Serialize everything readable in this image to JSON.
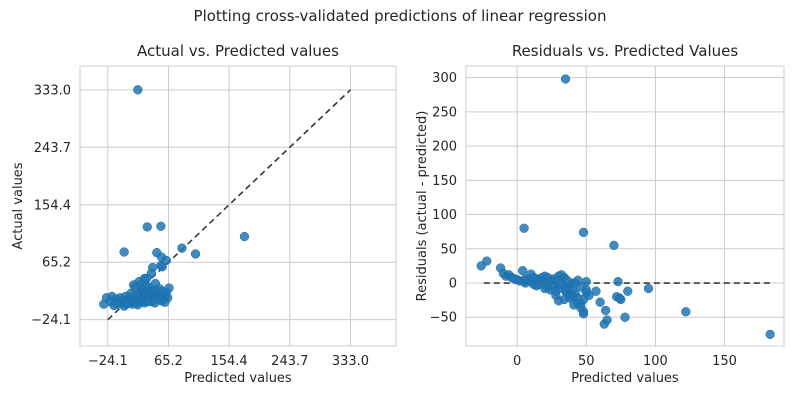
{
  "suptitle": "Plotting cross-validated predictions of linear regression",
  "chart_data": [
    {
      "type": "scatter",
      "title": "Actual vs. Predicted values",
      "xlabel": "Predicted values",
      "ylabel": "Actual values",
      "xlim": [
        -65,
        400
      ],
      "ylim": [
        -65,
        370
      ],
      "xticks": [
        -24.1,
        65.2,
        154.4,
        243.7,
        333.0
      ],
      "yticks": [
        -24.1,
        65.2,
        154.4,
        243.7,
        333.0
      ],
      "xtick_labels": [
        "−24.1",
        "65.2",
        "154.4",
        "243.7",
        "333.0"
      ],
      "ytick_labels": [
        "−24.1",
        "65.2",
        "154.4",
        "243.7",
        "333.0"
      ],
      "grid": true,
      "reference_line": {
        "x": [
          -24.1,
          333.0
        ],
        "y": [
          -24.1,
          333.0
        ],
        "style": "dashed"
      },
      "point_color": "#1f77b4",
      "points": [
        [
          20,
          333
        ],
        [
          177,
          105
        ],
        [
          34,
          120
        ],
        [
          54,
          121
        ],
        [
          48,
          80
        ],
        [
          85,
          87
        ],
        [
          105,
          78
        ],
        [
          0,
          81
        ],
        [
          55,
          73
        ],
        [
          62,
          68
        ],
        [
          54,
          60
        ],
        [
          56,
          58
        ],
        [
          42,
          57
        ],
        [
          30,
          40
        ],
        [
          22,
          35
        ],
        [
          40,
          48
        ],
        [
          33,
          40
        ],
        [
          46,
          32
        ],
        [
          14,
          30
        ],
        [
          25,
          24
        ],
        [
          38,
          21
        ],
        [
          50,
          18
        ],
        [
          58,
          16
        ],
        [
          -30,
          0
        ],
        [
          -26,
          10
        ],
        [
          -18,
          12
        ],
        [
          -12,
          8
        ],
        [
          -8,
          4
        ],
        [
          -4,
          2
        ],
        [
          0,
          1
        ],
        [
          3,
          0
        ],
        [
          6,
          4
        ],
        [
          8,
          7
        ],
        [
          10,
          3
        ],
        [
          12,
          6
        ],
        [
          14,
          10
        ],
        [
          16,
          12
        ],
        [
          18,
          2
        ],
        [
          20,
          5
        ],
        [
          22,
          9
        ],
        [
          24,
          14
        ],
        [
          26,
          18
        ],
        [
          28,
          11
        ],
        [
          30,
          6
        ],
        [
          32,
          15
        ],
        [
          34,
          20
        ],
        [
          36,
          8
        ],
        [
          38,
          12
        ],
        [
          40,
          4
        ],
        [
          42,
          14
        ],
        [
          44,
          17
        ],
        [
          46,
          22
        ],
        [
          48,
          10
        ],
        [
          50,
          8
        ],
        [
          52,
          13
        ],
        [
          54,
          16
        ],
        [
          56,
          20
        ],
        [
          58,
          7
        ],
        [
          60,
          12
        ],
        [
          62,
          18
        ],
        [
          64,
          10
        ],
        [
          66,
          25
        ],
        [
          -6,
          10
        ],
        [
          2,
          12
        ],
        [
          10,
          17
        ],
        [
          28,
          24
        ],
        [
          36,
          27
        ],
        [
          44,
          6
        ],
        [
          -2,
          6
        ],
        [
          4,
          2
        ],
        [
          8,
          10
        ],
        [
          12,
          0
        ],
        [
          18,
          14
        ],
        [
          26,
          4
        ],
        [
          -20,
          4
        ],
        [
          -15,
          -2
        ],
        [
          -10,
          0
        ],
        [
          0,
          -3
        ],
        [
          5,
          1
        ],
        [
          15,
          3
        ],
        [
          20,
          -1
        ],
        [
          30,
          2
        ],
        [
          35,
          4
        ],
        [
          45,
          2
        ],
        [
          55,
          5
        ],
        [
          60,
          3
        ],
        [
          16,
          26
        ],
        [
          24,
          30
        ],
        [
          32,
          28
        ],
        [
          52,
          24
        ]
      ]
    },
    {
      "type": "scatter",
      "title": "Residuals vs. Predicted Values",
      "xlabel": "Predicted values",
      "ylabel": "Residuals (actual - predicted)",
      "xlim": [
        -37,
        193
      ],
      "ylim": [
        -92,
        317
      ],
      "xticks": [
        0,
        50,
        100,
        150
      ],
      "yticks": [
        -50,
        0,
        50,
        100,
        150,
        200,
        250,
        300
      ],
      "xtick_labels": [
        "0",
        "50",
        "100",
        "150"
      ],
      "ytick_labels": [
        "−50",
        "0",
        "50",
        "100",
        "150",
        "200",
        "250",
        "300"
      ],
      "grid": true,
      "reference_line": {
        "x": [
          -24.1,
          183
        ],
        "y": [
          0,
          0
        ],
        "style": "dashed"
      },
      "point_color": "#1f77b4",
      "points": [
        [
          35,
          298
        ],
        [
          5,
          80
        ],
        [
          48,
          74
        ],
        [
          70,
          55
        ],
        [
          -26,
          25
        ],
        [
          -22,
          32
        ],
        [
          -12,
          22
        ],
        [
          -10,
          14
        ],
        [
          -8,
          10
        ],
        [
          -6,
          12
        ],
        [
          -4,
          8
        ],
        [
          -2,
          6
        ],
        [
          0,
          5
        ],
        [
          2,
          3
        ],
        [
          4,
          18
        ],
        [
          5,
          2
        ],
        [
          6,
          0
        ],
        [
          8,
          6
        ],
        [
          10,
          13
        ],
        [
          12,
          -2
        ],
        [
          14,
          -4
        ],
        [
          16,
          4
        ],
        [
          18,
          8
        ],
        [
          20,
          -8
        ],
        [
          22,
          -6
        ],
        [
          24,
          -10
        ],
        [
          26,
          -4
        ],
        [
          28,
          -12
        ],
        [
          30,
          -8
        ],
        [
          32,
          12
        ],
        [
          34,
          8
        ],
        [
          35,
          -12
        ],
        [
          36,
          -14
        ],
        [
          38,
          -18
        ],
        [
          40,
          -20
        ],
        [
          42,
          -16
        ],
        [
          44,
          -22
        ],
        [
          46,
          -30
        ],
        [
          48,
          -24
        ],
        [
          50,
          -14
        ],
        [
          52,
          -18
        ],
        [
          34,
          -4
        ],
        [
          36,
          -8
        ],
        [
          38,
          -6
        ],
        [
          40,
          0
        ],
        [
          28,
          2
        ],
        [
          26,
          6
        ],
        [
          24,
          4
        ],
        [
          22,
          8
        ],
        [
          20,
          10
        ],
        [
          18,
          2
        ],
        [
          16,
          -2
        ],
        [
          14,
          6
        ],
        [
          12,
          8
        ],
        [
          10,
          2
        ],
        [
          8,
          4
        ],
        [
          6,
          6
        ],
        [
          30,
          10
        ],
        [
          32,
          -2
        ],
        [
          44,
          4
        ],
        [
          46,
          -6
        ],
        [
          50,
          2
        ],
        [
          36,
          4
        ],
        [
          42,
          0
        ],
        [
          40,
          -10
        ],
        [
          30,
          -26
        ],
        [
          34,
          -24
        ],
        [
          38,
          -22
        ],
        [
          44,
          -30
        ],
        [
          46,
          -36
        ],
        [
          48,
          -42
        ],
        [
          41,
          -32
        ],
        [
          63,
          -60
        ],
        [
          65,
          -54
        ],
        [
          64,
          -40
        ],
        [
          72,
          -20
        ],
        [
          75,
          -24
        ],
        [
          78,
          -50
        ],
        [
          80,
          -12
        ],
        [
          74,
          -22
        ],
        [
          57,
          -12
        ],
        [
          60,
          -28
        ],
        [
          48,
          -45
        ],
        [
          73,
          2
        ],
        [
          95,
          -8
        ],
        [
          122,
          -42
        ],
        [
          183,
          -75
        ],
        [
          28,
          -18
        ],
        [
          50,
          -10
        ]
      ]
    }
  ]
}
